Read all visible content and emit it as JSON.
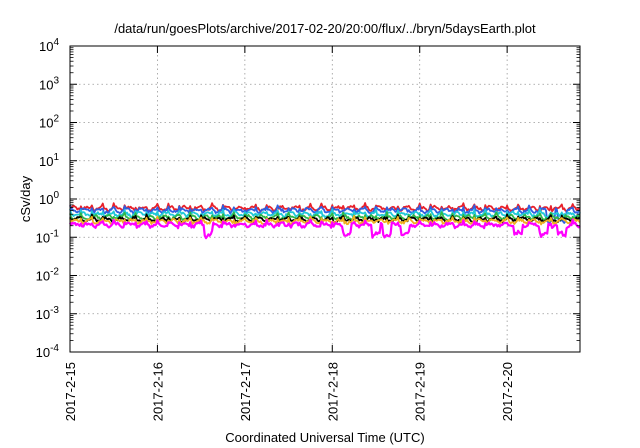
{
  "chart_data": {
    "type": "line",
    "title": "/data/run/goesPlots/archive/2017-02-20/20:00/flux/../bryn/5daysEarth.plot",
    "xlabel": "Coordinated Universal Time (UTC)",
    "ylabel": "cSv/day",
    "y_scale": "log",
    "ylim": [
      0.0001,
      10000
    ],
    "y_ticks": [
      {
        "base": "10",
        "exp": "-4"
      },
      {
        "base": "10",
        "exp": "-3"
      },
      {
        "base": "10",
        "exp": "-2"
      },
      {
        "base": "10",
        "exp": "-1"
      },
      {
        "base": "10",
        "exp": "0"
      },
      {
        "base": "10",
        "exp": "1"
      },
      {
        "base": "10",
        "exp": "2"
      },
      {
        "base": "10",
        "exp": "3"
      },
      {
        "base": "10",
        "exp": "4"
      }
    ],
    "x_ticks": [
      "2017-2-15",
      "2017-2-16",
      "2017-2-17",
      "2017-2-18",
      "2017-2-19",
      "2017-2-20"
    ],
    "xlim": [
      "2017-02-15T00:00",
      "2017-02-20T20:00"
    ],
    "grid": true,
    "legend": "none",
    "series": [
      {
        "color": "#e8202a",
        "level": 0.57,
        "dips": []
      },
      {
        "color": "#2f5fe0",
        "level": 0.5,
        "dips": [
          "2017-02-20T12:00",
          "2017-02-20T15:00"
        ]
      },
      {
        "color": "#20c8d8",
        "level": 0.4,
        "dips": []
      },
      {
        "color": "#30b848",
        "level": 0.33,
        "dips": []
      },
      {
        "color": "#000000",
        "level": 0.29,
        "dips": []
      },
      {
        "color": "#f0b020",
        "level": 0.26,
        "dips": []
      },
      {
        "color": "#ff00ff",
        "level": 0.21,
        "dips": [
          "2017-02-16T14:00",
          "2017-02-18T04:00",
          "2017-02-18T12:00",
          "2017-02-18T15:00",
          "2017-02-18T20:00",
          "2017-02-20T03:00",
          "2017-02-20T10:00",
          "2017-02-20T15:00"
        ]
      }
    ]
  }
}
